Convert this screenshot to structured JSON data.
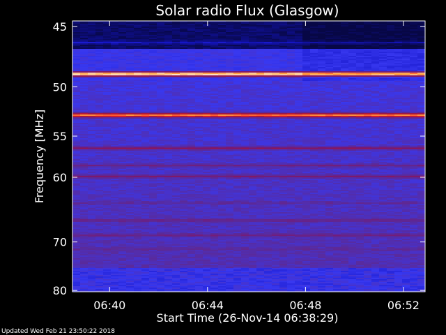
{
  "chart_data": {
    "type": "heatmap",
    "title": "Solar radio Flux (Glasgow)",
    "xlabel": "Start Time (26-Nov-14 06:38:29)",
    "ylabel": "Frequency [MHz]",
    "x_ticks": [
      "06:40",
      "06:44",
      "06:48",
      "06:52"
    ],
    "x_tick_minutes": [
      1.516,
      5.516,
      9.516,
      13.516
    ],
    "x_range_minutes": [
      0,
      14.4
    ],
    "y_ticks": [
      45,
      50,
      55,
      60,
      70,
      80
    ],
    "y_range_mhz": [
      44.6,
      80.3
    ],
    "y_scale": "reciprocal",
    "colormap": [
      "#000000",
      "#0a0a60",
      "#1515c8",
      "#3838f0",
      "#5a2a9a",
      "#7a1870",
      "#a01840",
      "#ff2020",
      "#ffa040",
      "#ffffff"
    ],
    "bands": [
      {
        "freq_mhz": 46.2,
        "intensity": 0.22
      },
      {
        "freq_mhz": 47.3,
        "intensity": 0.3
      },
      {
        "freq_mhz": 48.8,
        "intensity": 1.0
      },
      {
        "freq_mhz": 51.2,
        "intensity": 0.3
      },
      {
        "freq_mhz": 52.7,
        "intensity": 0.85
      },
      {
        "freq_mhz": 56.3,
        "intensity": 0.6
      },
      {
        "freq_mhz": 58.4,
        "intensity": 0.5
      },
      {
        "freq_mhz": 59.8,
        "intensity": 0.55
      },
      {
        "freq_mhz": 63.5,
        "intensity": 0.45
      },
      {
        "freq_mhz": 66.2,
        "intensity": 0.5
      },
      {
        "freq_mhz": 68.7,
        "intensity": 0.5
      },
      {
        "freq_mhz": 71.2,
        "intensity": 0.45
      },
      {
        "freq_mhz": 73.6,
        "intensity": 0.4
      }
    ]
  },
  "footer": {
    "updated": "Updated Wed Feb 21 23:50:22 2018"
  }
}
